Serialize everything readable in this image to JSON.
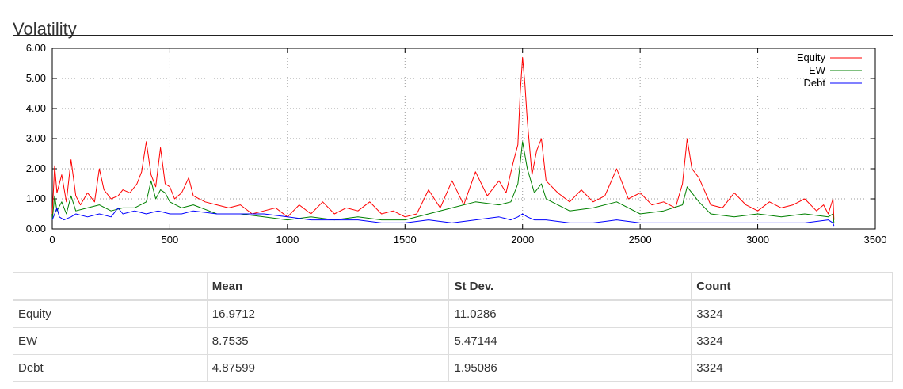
{
  "page": {
    "title": "Volatility"
  },
  "chart_data": {
    "type": "line",
    "title": "",
    "xlabel": "",
    "ylabel": "",
    "xlim": [
      0,
      3500
    ],
    "ylim": [
      0,
      6
    ],
    "xticks": [
      0,
      500,
      1000,
      1500,
      2000,
      2500,
      3000,
      3500
    ],
    "yticks": [
      0,
      1,
      2,
      3,
      4,
      5,
      6
    ],
    "x_tick_labels": [
      "0",
      "500",
      "1000",
      "1500",
      "2000",
      "2500",
      "3000",
      "3500"
    ],
    "y_tick_labels": [
      "0.00",
      "1.00",
      "2.00",
      "3.00",
      "4.00",
      "5.00",
      "6.00"
    ],
    "grid": true,
    "legend_position": "top-right",
    "series": [
      {
        "name": "Equity",
        "color": "#ff0000",
        "x": [
          0,
          10,
          20,
          40,
          60,
          80,
          100,
          120,
          150,
          180,
          200,
          220,
          250,
          280,
          300,
          330,
          360,
          380,
          400,
          420,
          440,
          460,
          480,
          500,
          520,
          550,
          580,
          600,
          650,
          700,
          750,
          800,
          850,
          900,
          950,
          1000,
          1050,
          1100,
          1150,
          1200,
          1250,
          1300,
          1350,
          1400,
          1450,
          1500,
          1550,
          1600,
          1650,
          1700,
          1750,
          1800,
          1850,
          1900,
          1930,
          1960,
          1980,
          1990,
          2000,
          2010,
          2020,
          2040,
          2060,
          2080,
          2100,
          2150,
          2200,
          2250,
          2300,
          2350,
          2400,
          2450,
          2500,
          2550,
          2600,
          2650,
          2680,
          2700,
          2720,
          2750,
          2800,
          2850,
          2900,
          2950,
          3000,
          3050,
          3100,
          3150,
          3200,
          3250,
          3280,
          3300,
          3320,
          3324
        ],
        "values": [
          0.5,
          2.1,
          1.2,
          1.8,
          0.9,
          2.3,
          1.1,
          0.8,
          1.2,
          0.9,
          2.0,
          1.3,
          1.0,
          1.1,
          1.3,
          1.2,
          1.5,
          1.9,
          2.9,
          1.8,
          1.4,
          2.7,
          1.5,
          1.4,
          1.0,
          1.2,
          1.7,
          1.1,
          0.9,
          0.8,
          0.7,
          0.8,
          0.5,
          0.6,
          0.7,
          0.4,
          0.8,
          0.5,
          0.9,
          0.5,
          0.7,
          0.6,
          0.9,
          0.5,
          0.6,
          0.4,
          0.5,
          1.3,
          0.7,
          1.6,
          0.8,
          1.9,
          1.1,
          1.6,
          1.2,
          2.2,
          2.8,
          4.5,
          5.7,
          4.8,
          3.6,
          1.8,
          2.6,
          3.0,
          1.6,
          1.2,
          0.9,
          1.3,
          0.9,
          1.1,
          2.0,
          1.0,
          1.2,
          0.8,
          0.9,
          0.7,
          1.5,
          3.0,
          2.0,
          1.7,
          0.8,
          0.7,
          1.2,
          0.8,
          0.6,
          0.9,
          0.7,
          0.8,
          1.0,
          0.6,
          0.8,
          0.5,
          1.0,
          0.3
        ]
      },
      {
        "name": "EW",
        "color": "#008000",
        "x": [
          0,
          10,
          20,
          40,
          60,
          80,
          100,
          150,
          200,
          250,
          300,
          350,
          400,
          420,
          440,
          460,
          480,
          500,
          550,
          600,
          700,
          800,
          900,
          1000,
          1100,
          1200,
          1300,
          1400,
          1500,
          1600,
          1700,
          1800,
          1900,
          1950,
          1980,
          2000,
          2020,
          2050,
          2080,
          2100,
          2200,
          2300,
          2400,
          2500,
          2600,
          2680,
          2700,
          2750,
          2800,
          2900,
          3000,
          3100,
          3200,
          3300,
          3320,
          3324
        ],
        "values": [
          0.3,
          1.1,
          0.6,
          0.9,
          0.5,
          1.1,
          0.6,
          0.7,
          0.8,
          0.6,
          0.7,
          0.7,
          0.9,
          1.6,
          1.0,
          1.3,
          1.2,
          0.9,
          0.7,
          0.8,
          0.5,
          0.5,
          0.4,
          0.3,
          0.4,
          0.3,
          0.4,
          0.3,
          0.3,
          0.5,
          0.7,
          0.9,
          0.8,
          0.9,
          1.5,
          2.9,
          2.0,
          1.2,
          1.5,
          1.0,
          0.6,
          0.7,
          0.9,
          0.5,
          0.6,
          0.8,
          1.4,
          0.9,
          0.5,
          0.4,
          0.5,
          0.4,
          0.5,
          0.4,
          0.5,
          0.2
        ]
      },
      {
        "name": "Debt",
        "color": "#0000ff",
        "x": [
          0,
          10,
          20,
          30,
          50,
          80,
          100,
          150,
          200,
          250,
          280,
          300,
          350,
          400,
          450,
          500,
          550,
          600,
          700,
          800,
          900,
          1000,
          1100,
          1200,
          1300,
          1400,
          1500,
          1600,
          1700,
          1800,
          1900,
          1950,
          1980,
          2000,
          2020,
          2050,
          2100,
          2200,
          2300,
          2400,
          2500,
          2600,
          2700,
          2800,
          2900,
          3000,
          3100,
          3200,
          3300,
          3320,
          3324
        ],
        "values": [
          0.3,
          0.5,
          0.7,
          0.4,
          0.3,
          0.4,
          0.5,
          0.4,
          0.5,
          0.4,
          0.7,
          0.5,
          0.6,
          0.5,
          0.6,
          0.5,
          0.5,
          0.6,
          0.5,
          0.5,
          0.5,
          0.4,
          0.3,
          0.3,
          0.3,
          0.2,
          0.2,
          0.3,
          0.2,
          0.3,
          0.4,
          0.3,
          0.4,
          0.5,
          0.4,
          0.3,
          0.3,
          0.2,
          0.2,
          0.3,
          0.2,
          0.2,
          0.2,
          0.2,
          0.2,
          0.2,
          0.2,
          0.2,
          0.3,
          0.2,
          0.1
        ]
      }
    ]
  },
  "table": {
    "headers": [
      "",
      "Mean",
      "St Dev.",
      "Count"
    ],
    "rows": [
      {
        "label": "Equity",
        "mean": "16.9712",
        "stdev": "11.0286",
        "count": "3324"
      },
      {
        "label": "EW",
        "mean": "8.7535",
        "stdev": "5.47144",
        "count": "3324"
      },
      {
        "label": "Debt",
        "mean": "4.87599",
        "stdev": "1.95086",
        "count": "3324"
      }
    ]
  }
}
